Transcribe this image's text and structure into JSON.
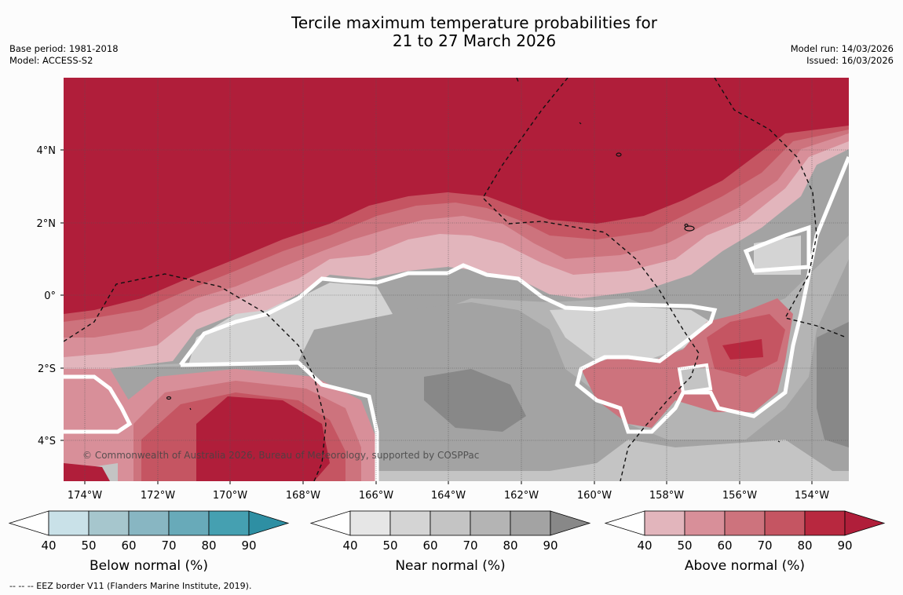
{
  "header": {
    "title_line1": "Tercile maximum temperature probabilities for",
    "title_line2": "21 to 27 March 2026",
    "base_period": "Base period: 1981-2018",
    "model": "Model: ACCESS-S2",
    "model_run": "Model run: 14/03/2026",
    "issued": "Issued: 16/03/2026"
  },
  "map": {
    "lon_labels": [
      "174°W",
      "172°W",
      "170°W",
      "168°W",
      "166°W",
      "164°W",
      "162°W",
      "160°W",
      "158°W",
      "156°W",
      "154°W"
    ],
    "lat_labels": [
      "4°N",
      "2°N",
      "0°",
      "2°S",
      "4°S"
    ],
    "copyright": "© Commonwealth of Australia 2026, Bureau of Meteorology, supported by COSPPac"
  },
  "legends": [
    {
      "title": "Below normal (%)",
      "ticks": [
        "40",
        "50",
        "60",
        "70",
        "80",
        "90"
      ],
      "colors": [
        "#c9e1e8",
        "#a6c6cd",
        "#88b6c2",
        "#68aab9",
        "#45a0b1",
        "#2e8fa3"
      ]
    },
    {
      "title": "Near normal (%)",
      "ticks": [
        "40",
        "50",
        "60",
        "70",
        "80",
        "90"
      ],
      "colors": [
        "#e6e6e6",
        "#d4d4d4",
        "#c4c4c4",
        "#b4b4b4",
        "#a3a3a3",
        "#888888"
      ]
    },
    {
      "title": "Above normal (%)",
      "ticks": [
        "40",
        "50",
        "60",
        "70",
        "80",
        "90"
      ],
      "colors": [
        "#e2b5bc",
        "#d88f99",
        "#cd737d",
        "#c55562",
        "#b8283f",
        "#b01e3a"
      ]
    }
  ],
  "footnote": "--  --  -- EEZ border V11 (Flanders Marine Institute, 2019)."
}
